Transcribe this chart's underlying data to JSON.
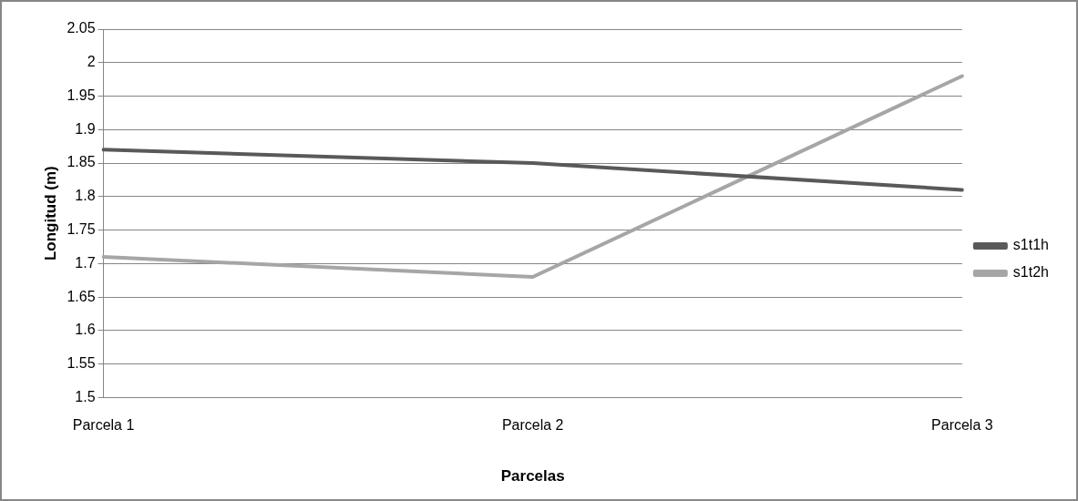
{
  "chart_data": {
    "type": "line",
    "xlabel": "Parcelas",
    "ylabel": "Longitud (m)",
    "categories": [
      "Parcela 1",
      "Parcela 2",
      "Parcela 3"
    ],
    "series": [
      {
        "name": "s1t1h",
        "color": "#595959",
        "values": [
          1.87,
          1.85,
          1.81
        ]
      },
      {
        "name": "s1t2h",
        "color": "#a6a6a6",
        "values": [
          1.71,
          1.68,
          1.98
        ]
      }
    ],
    "ylim": [
      1.5,
      2.05
    ],
    "yticks": [
      1.5,
      1.55,
      1.6,
      1.65,
      1.7,
      1.75,
      1.8,
      1.85,
      1.9,
      1.95,
      2,
      2.05
    ],
    "grid": "y",
    "legend": "right",
    "marker": "none"
  }
}
